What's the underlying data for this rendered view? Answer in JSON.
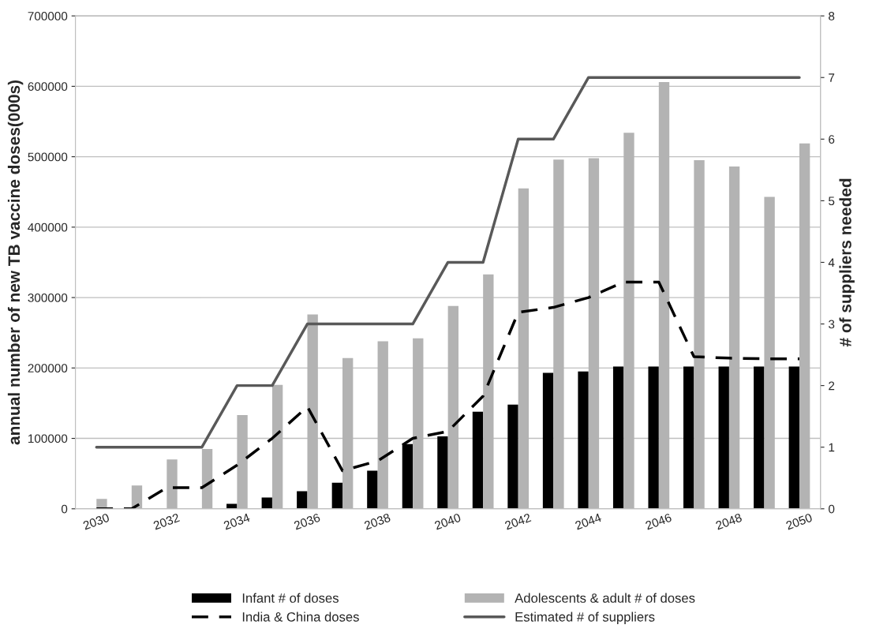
{
  "chart_data": {
    "type": "bar",
    "categories": [
      "2030",
      null,
      "2032",
      null,
      "2034",
      null,
      "2036",
      null,
      "2038",
      null,
      "2040",
      null,
      "2042",
      null,
      "2044",
      null,
      "2046",
      null,
      "2048",
      null,
      "2050"
    ],
    "ylabel": "annual number of new TB vaccine doses(000s)",
    "y2label": "# of suppliers needed",
    "ylim": [
      0,
      700000
    ],
    "yticks": [
      0,
      100000,
      200000,
      300000,
      400000,
      500000,
      600000,
      700000
    ],
    "y2lim": [
      0,
      8
    ],
    "y2ticks": [
      0,
      1,
      2,
      3,
      4,
      5,
      6,
      7,
      8
    ],
    "grid": "y",
    "legend": "bottom",
    "series": [
      {
        "name": "Infant # of doses",
        "type": "bar",
        "color": "#000000",
        "values": [
          null,
          null,
          null,
          null,
          7000,
          16000,
          25000,
          37000,
          54000,
          92000,
          103000,
          138000,
          148000,
          193000,
          195000,
          202000,
          202000,
          202000,
          202000,
          202000,
          202000
        ]
      },
      {
        "name": "Adolescents & adult # of doses",
        "type": "bar",
        "color": "#b3b3b3",
        "values": [
          14000,
          33000,
          70000,
          85000,
          133000,
          176000,
          276000,
          214000,
          238000,
          242000,
          288000,
          333000,
          455000,
          496000,
          498000,
          534000,
          606000,
          495000,
          486000,
          443000,
          519000
        ]
      },
      {
        "name": "India & China doses",
        "type": "line",
        "color": "#000000",
        "line_style": "dashed",
        "values": [
          0,
          0,
          30000,
          30000,
          62000,
          100000,
          145000,
          54000,
          68000,
          100000,
          110000,
          160000,
          279000,
          286000,
          300000,
          322000,
          322000,
          216000,
          214000,
          213000,
          213000
        ]
      },
      {
        "name": "Estimated # of suppliers",
        "type": "line",
        "color": "#595959",
        "axis": "y2",
        "line_style": "solid",
        "values": [
          1,
          1,
          1,
          1,
          2,
          2,
          3,
          3,
          3,
          3,
          4,
          4,
          6,
          6,
          7,
          7,
          7,
          7,
          7,
          7,
          7
        ]
      }
    ]
  }
}
